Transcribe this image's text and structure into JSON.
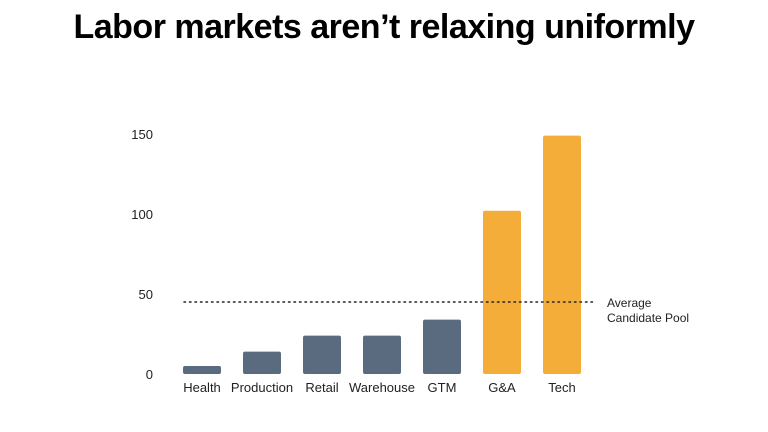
{
  "title": "Labor markets aren’t relaxing uniformly",
  "chart_data": {
    "type": "bar",
    "title": "Labor markets aren’t relaxing uniformly",
    "xlabel": "",
    "ylabel": "",
    "categories": [
      "Health",
      "Production",
      "Retail",
      "Warehouse",
      "GTM",
      "G&A",
      "Tech"
    ],
    "values": [
      5,
      14,
      24,
      24,
      34,
      102,
      149
    ],
    "bar_colors": [
      "#5a6b80",
      "#5a6b80",
      "#5a6b80",
      "#5a6b80",
      "#5a6b80",
      "#f5ad3a",
      "#f5ad3a"
    ],
    "ylim": [
      0,
      150
    ],
    "yticks": [
      0,
      50,
      100,
      150
    ],
    "grid": false,
    "reference_line": {
      "value": 45,
      "style": "dotted",
      "label_lines": [
        "Average",
        "Candidate Pool"
      ]
    }
  }
}
